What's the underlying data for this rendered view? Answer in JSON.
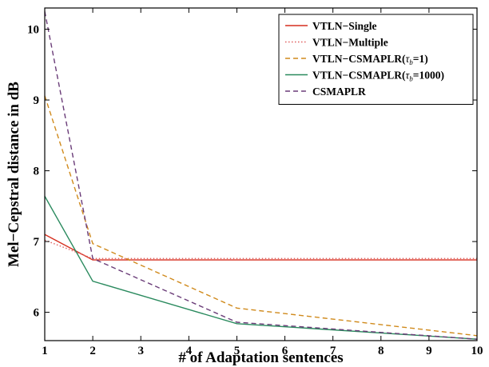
{
  "chart_data": {
    "type": "line",
    "title": "",
    "xlabel": "# of Adaptation sentences",
    "ylabel": "Mel−Cepstral distance in dB",
    "xlim": [
      1,
      10
    ],
    "ylim": [
      5.6,
      10.3
    ],
    "xticks": [
      "1",
      "2",
      "3",
      "4",
      "5",
      "6",
      "7",
      "8",
      "9",
      "10"
    ],
    "yticks": [
      "6",
      "7",
      "8",
      "9",
      "10"
    ],
    "grid": false,
    "legend_position": "top-right",
    "x": [
      1,
      2,
      5,
      10
    ],
    "series": [
      {
        "name": "VTLN−Single",
        "style": "solid",
        "color": "#d62f1f",
        "values": [
          7.1,
          6.74,
          6.74,
          6.74
        ]
      },
      {
        "name": "VTLN−Multiple",
        "style": "dotted",
        "color": "#e06060",
        "values": [
          7.02,
          6.76,
          6.76,
          6.76
        ]
      },
      {
        "name": "VTLN−CSMAPLR(τb=1)",
        "legend_parts": [
          "VTLN−CSMAPLR(",
          "τ",
          "b",
          "=1)"
        ],
        "style": "dashed",
        "color": "#d08a1c",
        "values": [
          9.06,
          6.97,
          6.06,
          5.67
        ]
      },
      {
        "name": "VTLN−CSMAPLR(τb=1000)",
        "legend_parts": [
          "VTLN−CSMAPLR(",
          "τ",
          "b",
          "=1000)"
        ],
        "style": "solid",
        "color": "#2a8a5e",
        "values": [
          7.64,
          6.44,
          5.84,
          5.62
        ]
      },
      {
        "name": "CSMAPLR",
        "style": "dashed",
        "color": "#6a3c78",
        "values": [
          10.25,
          6.76,
          5.86,
          5.62
        ]
      }
    ]
  }
}
